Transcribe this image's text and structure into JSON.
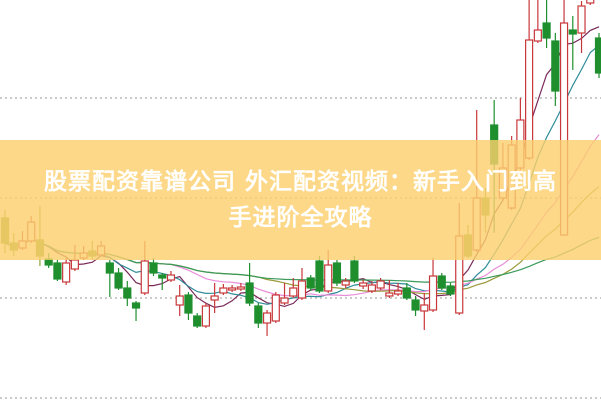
{
  "article_title": {
    "line1": "股票配资靠谱公司 外汇配资视频：新手入门到高",
    "line2": "手进阶全攻略"
  },
  "chart_data": {
    "type": "candlestick",
    "ylim": [
      0,
      40
    ],
    "grid": {
      "horizontal": true,
      "style": "dotted",
      "values": [
        0,
        10,
        20,
        30
      ]
    },
    "axes_visible": false,
    "colors": {
      "up": "#c8373a",
      "down": "#1f8f2e",
      "down_in_banner": "#8aa32a",
      "grid": "#aaaaaa",
      "banner": "#fbd06e"
    },
    "moving_average_colors": [
      "#7a2a5a",
      "#2e8c99",
      "#e88bd8",
      "#9a9a3a",
      "#3a9a5a"
    ],
    "moving_average_periods": [
      5,
      10,
      20,
      30,
      60
    ],
    "candles_ohlc": [
      [
        18.0,
        15.5,
        18.8,
        14.5
      ],
      [
        15.5,
        14.8,
        16.5,
        14.2
      ],
      [
        15.0,
        15.7,
        16.7,
        14.8
      ],
      [
        15.7,
        17.6,
        18.2,
        15.5
      ],
      [
        15.8,
        14.2,
        19.2,
        13.2
      ],
      [
        13.9,
        13.3,
        14.5,
        13.0
      ],
      [
        13.5,
        11.9,
        13.8,
        11.7
      ],
      [
        11.6,
        13.5,
        14.0,
        11.3
      ],
      [
        12.9,
        13.8,
        15.3,
        12.7
      ],
      [
        14.0,
        14.5,
        15.2,
        13.8
      ],
      [
        14.7,
        14.2,
        15.7,
        13.8
      ],
      [
        14.3,
        15.2,
        15.7,
        14.2
      ],
      [
        13.5,
        12.5,
        13.8,
        10.1
      ],
      [
        12.5,
        11.0,
        13.0,
        10.8
      ],
      [
        11.0,
        10.0,
        11.7,
        9.2
      ],
      [
        9.5,
        9.0,
        9.7,
        7.7
      ],
      [
        10.5,
        13.7,
        15.7,
        10.3
      ],
      [
        13.5,
        12.5,
        14.0,
        12.2
      ],
      [
        12.3,
        12.0,
        12.5,
        10.8
      ],
      [
        11.8,
        12.3,
        12.7,
        11.6
      ],
      [
        9.3,
        10.2,
        11.3,
        8.2
      ],
      [
        10.3,
        8.5,
        10.6,
        7.8
      ],
      [
        8.2,
        7.2,
        8.5,
        7.0
      ],
      [
        7.2,
        9.2,
        9.5,
        7.0
      ],
      [
        9.8,
        10.2,
        11.5,
        8.5
      ],
      [
        10.5,
        11.0,
        11.4,
        10.3
      ],
      [
        10.8,
        11.0,
        11.3,
        10.6
      ],
      [
        10.9,
        11.1,
        11.5,
        10.7
      ],
      [
        11.5,
        9.5,
        13.5,
        9.2
      ],
      [
        9.2,
        7.5,
        9.5,
        7.0
      ],
      [
        7.5,
        8.5,
        8.8,
        6.2
      ],
      [
        7.7,
        10.3,
        10.6,
        7.5
      ],
      [
        9.5,
        10.0,
        11.5,
        9.3
      ],
      [
        10.2,
        11.0,
        12.0,
        10.0
      ],
      [
        10.0,
        11.7,
        13.0,
        9.8
      ],
      [
        12.0,
        11.0,
        12.3,
        10.7
      ],
      [
        13.7,
        10.7,
        14.2,
        10.5
      ],
      [
        10.7,
        13.3,
        14.8,
        10.5
      ],
      [
        13.5,
        11.5,
        13.8,
        11.2
      ],
      [
        11.3,
        11.7,
        12.0,
        11.0
      ],
      [
        13.7,
        11.7,
        14.2,
        11.5
      ],
      [
        11.2,
        11.5,
        11.8,
        10.9
      ],
      [
        10.7,
        11.3,
        11.7,
        10.5
      ],
      [
        11.0,
        11.7,
        12.0,
        10.8
      ],
      [
        10.2,
        10.5,
        11.8,
        10.0
      ],
      [
        10.4,
        10.7,
        11.5,
        10.2
      ],
      [
        11.0,
        10.0,
        11.5,
        9.8
      ],
      [
        9.8,
        8.8,
        10.2,
        8.2
      ],
      [
        8.7,
        9.3,
        10.5,
        6.8
      ],
      [
        8.8,
        12.2,
        14.0,
        8.6
      ],
      [
        12.2,
        11.0,
        12.5,
        10.8
      ],
      [
        11.2,
        10.4,
        11.5,
        10.2
      ],
      [
        8.5,
        16.2,
        19.5,
        8.3
      ],
      [
        16.3,
        14.2,
        17.3,
        14.0
      ],
      [
        14.8,
        20.0,
        28.8,
        14.6
      ],
      [
        20.0,
        18.3,
        21.0,
        16.5
      ],
      [
        27.3,
        23.4,
        29.8,
        16.5
      ],
      [
        20.0,
        23.0,
        25.5,
        19.7
      ],
      [
        19.0,
        25.3,
        26.2,
        18.8
      ],
      [
        23.0,
        27.8,
        30.0,
        22.8
      ],
      [
        24.0,
        35.8,
        40.0,
        23.8
      ],
      [
        35.7,
        36.8,
        40.0,
        35.5
      ],
      [
        37.5,
        36.0,
        40.0,
        35.0
      ],
      [
        35.7,
        30.7,
        36.5,
        29.2
      ],
      [
        16.3,
        37.5,
        40.0,
        16.2
      ],
      [
        36.8,
        36.4,
        38.2,
        32.8
      ],
      [
        36.5,
        39.2,
        39.7,
        34.5
      ],
      [
        39.5,
        40.0,
        40.0,
        39.3
      ],
      [
        36.0,
        32.5,
        36.5,
        32.0
      ]
    ]
  }
}
